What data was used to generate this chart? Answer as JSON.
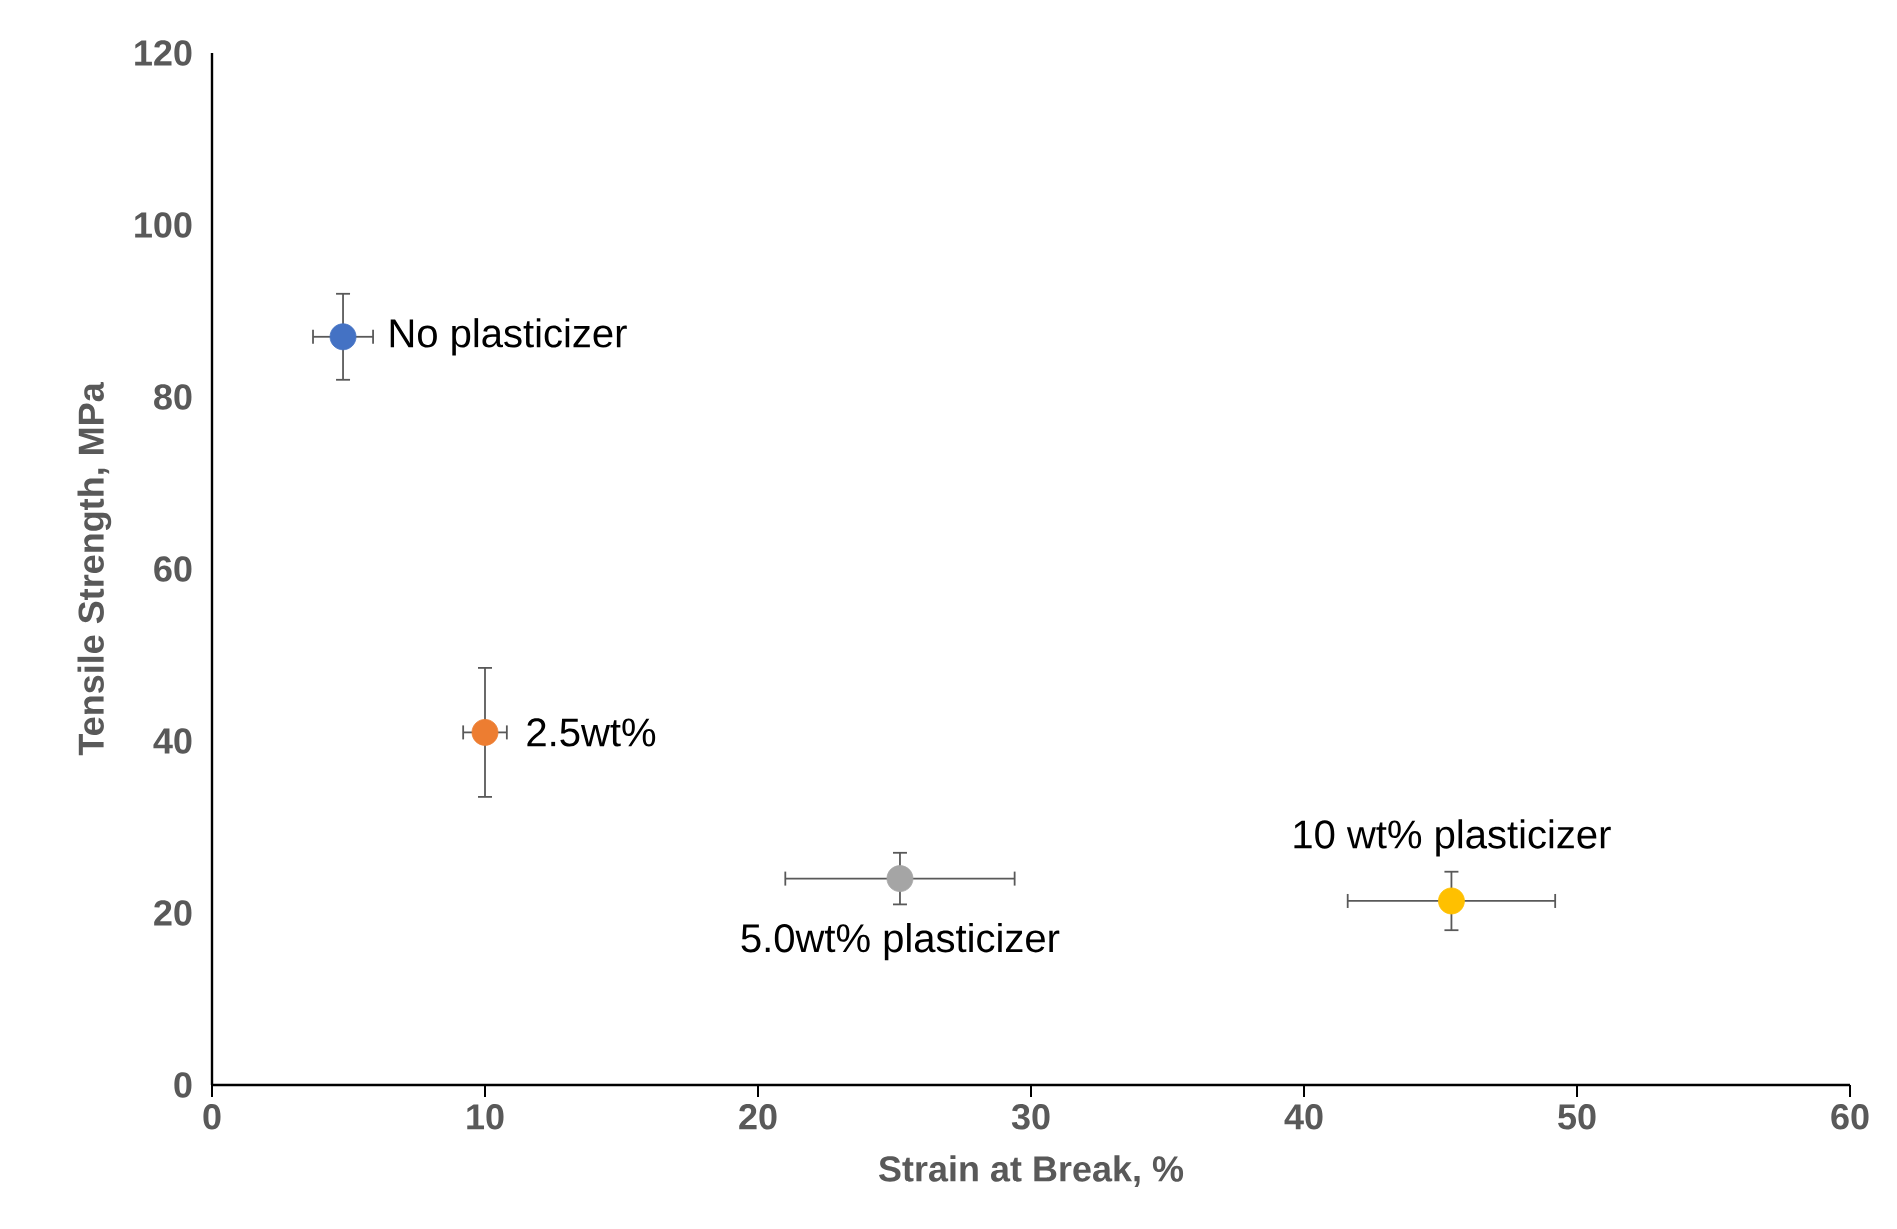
{
  "chart_data": {
    "type": "scatter",
    "xlabel": "Strain at Break, %",
    "ylabel": "Tensile Strength, MPa",
    "x": [
      4.8,
      10,
      25.2,
      45.4
    ],
    "values": [
      87,
      41,
      24,
      21.4
    ],
    "colors": [
      "#4472c4",
      "#ed7d31",
      "#a5a5a5",
      "#ffc000"
    ],
    "errors": [
      5,
      7.5,
      3,
      3.4
    ],
    "xerrors": [
      1.1,
      0.8,
      4.2,
      3.8
    ],
    "xlim": [
      0,
      60
    ],
    "ylim": [
      0,
      120
    ],
    "xticks": [
      0,
      10,
      20,
      30,
      40,
      50,
      60
    ],
    "yticks": [
      0,
      20,
      40,
      60,
      80,
      100,
      120
    ],
    "marker": "circle",
    "annotations": [
      {
        "text": "No plasticizer",
        "x": 4.8,
        "y": 87
      },
      {
        "text": "2.5wt%",
        "x": 10,
        "y": 41
      },
      {
        "text": "5.0wt% plasticizer",
        "x": 25.2,
        "y": 24
      },
      {
        "text": "10 wt% plasticizer",
        "x": 45.4,
        "y": 21.4
      }
    ]
  }
}
